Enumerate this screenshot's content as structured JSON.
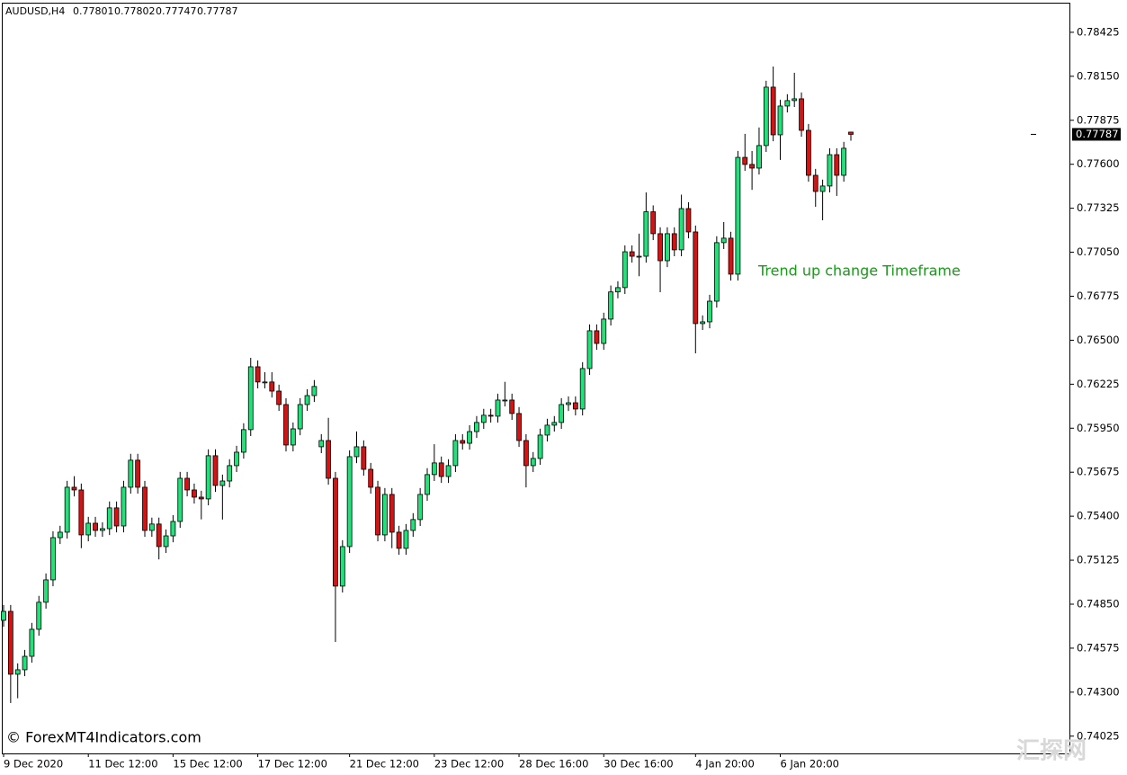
{
  "chart_data": {
    "type": "candlestick",
    "symbol": "AUDUSD,H4",
    "annotation": "Trend up change Timeframe",
    "watermark": "© ForexMT4Indicators.com",
    "watermark2": "汇探网",
    "up_color": "#22e07a",
    "down_color": "#d41414",
    "ylim": [
      0.73917,
      0.7861
    ],
    "yticks": [
      0.78425,
      {
        "value": 0.7815,
        "label": "0.78150"
      },
      0.77875,
      {
        "value": 0.776,
        "label": "0.77600"
      },
      0.77325,
      {
        "value": 0.7705,
        "label": "0.77050"
      },
      0.76775,
      {
        "value": 0.765,
        "label": "0.76500"
      },
      0.76225,
      {
        "value": 0.7595,
        "label": "0.75950"
      },
      0.75675,
      {
        "value": 0.754,
        "label": "0.75400"
      },
      0.75125,
      {
        "value": 0.7485,
        "label": "0.74850"
      },
      0.74575,
      {
        "value": 0.743,
        "label": "0.74300"
      },
      0.74025
    ],
    "categories": [
      "9 Dec 2020",
      null,
      null,
      null,
      null,
      null,
      null,
      null,
      null,
      null,
      null,
      null,
      "11 Dec 12:00",
      null,
      null,
      null,
      null,
      null,
      null,
      null,
      null,
      null,
      null,
      null,
      "15 Dec 12:00",
      null,
      null,
      null,
      null,
      null,
      null,
      null,
      null,
      null,
      null,
      null,
      "17 Dec 12:00",
      null,
      null,
      null,
      null,
      null,
      null,
      null,
      null,
      null,
      null,
      null,
      null,
      "21 Dec 12:00",
      null,
      null,
      null,
      null,
      null,
      null,
      null,
      null,
      null,
      null,
      null,
      "23 Dec 12:00",
      null,
      null,
      null,
      null,
      null,
      null,
      null,
      null,
      null,
      null,
      null,
      "28 Dec 16:00",
      null,
      null,
      null,
      null,
      null,
      null,
      null,
      null,
      null,
      null,
      null,
      "30 Dec 16:00",
      null,
      null,
      null,
      null,
      null,
      null,
      null,
      null,
      null,
      null,
      null,
      null,
      "4 Jan 20:00",
      null,
      null,
      null,
      null,
      null,
      null,
      null,
      null,
      null,
      null,
      null,
      "6 Jan 20:00",
      null,
      null,
      null,
      null,
      null,
      null,
      null,
      null,
      null,
      null
    ],
    "open": [
      0.74749,
      0.74805,
      0.74412,
      0.7444,
      0.74524,
      0.74693,
      0.74862,
      0.75002,
      0.75266,
      0.753,
      0.75581,
      0.75564,
      0.75283,
      0.75356,
      0.75311,
      0.75322,
      0.75452,
      0.75339,
      0.75581,
      0.7575,
      0.75581,
      0.75311,
      0.75351,
      0.7521,
      0.75277,
      0.75367,
      0.75637,
      0.75564,
      0.75519,
      0.75508,
      0.75778,
      0.75592,
      0.7562,
      0.75716,
      0.758,
      0.75941,
      0.76334,
      0.76239,
      0.76239,
      0.76182,
      0.76098,
      0.75845,
      0.75946,
      0.76098,
      0.76154,
      0.75834,
      0.75873,
      0.75637,
      0.74963,
      0.7521,
      0.75772,
      0.75834,
      0.75693,
      0.75581,
      0.75283,
      0.75536,
      0.753,
      0.75199,
      0.75311,
      0.75379,
      0.75536,
      0.7566,
      0.75733,
      0.75648,
      0.75716,
      0.75873,
      0.75856,
      0.75929,
      0.75986,
      0.76031,
      0.76025,
      0.76126,
      0.76126,
      0.76042,
      0.75873,
      0.75716,
      0.75761,
      0.75907,
      0.75969,
      0.75986,
      0.76098,
      0.76109,
      0.7607,
      0.76323,
      0.76559,
      0.7648,
      0.76632,
      0.76802,
      0.76829,
      0.77053,
      0.77025,
      0.77025,
      0.77303,
      0.77166,
      0.76997,
      0.77166,
      0.77065,
      0.77323,
      0.77177,
      0.76604,
      0.76615,
      0.76744,
      0.7711,
      0.77138,
      0.76913,
      0.77643,
      0.77599,
      0.77576,
      0.77717,
      0.78082,
      0.77784,
      0.77964,
      0.77998,
      0.78009,
      0.77812,
      0.77531,
      0.7743,
      0.77464,
      0.7766,
      0.77531,
      0.77801
    ],
    "high": [
      0.74845,
      0.74845,
      0.7448,
      0.74564,
      0.74733,
      0.74902,
      0.75042,
      0.75306,
      0.7534,
      0.75621,
      0.7565,
      0.75604,
      0.75396,
      0.75396,
      0.75362,
      0.75492,
      0.75492,
      0.75621,
      0.7579,
      0.7579,
      0.75621,
      0.75391,
      0.75391,
      0.75317,
      0.75407,
      0.75677,
      0.75677,
      0.75604,
      0.75559,
      0.75818,
      0.75818,
      0.7566,
      0.75756,
      0.7584,
      0.75981,
      0.7639,
      0.76374,
      0.763,
      0.763,
      0.76222,
      0.76138,
      0.75986,
      0.76138,
      0.76194,
      0.76251,
      0.75913,
      0.76015,
      0.75677,
      0.7525,
      0.75812,
      0.7593,
      0.75874,
      0.75733,
      0.75621,
      0.75576,
      0.75576,
      0.7534,
      0.75351,
      0.75419,
      0.75576,
      0.757,
      0.7585,
      0.75773,
      0.75756,
      0.75913,
      0.75913,
      0.75969,
      0.76026,
      0.76071,
      0.76071,
      0.76166,
      0.7624,
      0.76166,
      0.76082,
      0.75913,
      0.75801,
      0.75947,
      0.76009,
      0.76026,
      0.76138,
      0.76149,
      0.76149,
      0.76363,
      0.76599,
      0.76599,
      0.76672,
      0.76842,
      0.76869,
      0.77093,
      0.77093,
      0.77166,
      0.77424,
      0.77343,
      0.77206,
      0.77206,
      0.77206,
      0.7741,
      0.77363,
      0.77217,
      0.76655,
      0.76784,
      0.7715,
      0.77239,
      0.77178,
      0.77683,
      0.7779,
      0.77683,
      0.7783,
      0.78122,
      0.78211,
      0.78004,
      0.78038,
      0.78172,
      0.78049,
      0.77852,
      0.77571,
      0.77504,
      0.777,
      0.777,
      0.7774,
      0.77802
    ],
    "low": [
      0.74709,
      0.74232,
      0.74262,
      0.744,
      0.74484,
      0.74653,
      0.74822,
      0.74962,
      0.75226,
      0.7526,
      0.75524,
      0.752,
      0.75243,
      0.75271,
      0.75271,
      0.75282,
      0.75299,
      0.75299,
      0.75541,
      0.75541,
      0.75271,
      0.75271,
      0.7513,
      0.7517,
      0.75237,
      0.75327,
      0.75524,
      0.75479,
      0.7538,
      0.75468,
      0.75552,
      0.75379,
      0.7558,
      0.75676,
      0.7576,
      0.75901,
      0.76199,
      0.76199,
      0.76142,
      0.76058,
      0.75805,
      0.75805,
      0.75906,
      0.76058,
      0.76114,
      0.75794,
      0.75597,
      0.74614,
      0.74923,
      0.7517,
      0.75732,
      0.75653,
      0.75541,
      0.75243,
      0.75243,
      0.752,
      0.75159,
      0.75159,
      0.75271,
      0.75339,
      0.75496,
      0.7562,
      0.75608,
      0.75608,
      0.75676,
      0.75816,
      0.75816,
      0.75889,
      0.75946,
      0.75985,
      0.75985,
      0.76086,
      0.76002,
      0.75833,
      0.7558,
      0.75676,
      0.75721,
      0.75867,
      0.75929,
      0.75946,
      0.76058,
      0.7603,
      0.7603,
      0.76283,
      0.7644,
      0.7644,
      0.76592,
      0.76762,
      0.76789,
      0.76985,
      0.769,
      0.76985,
      0.77126,
      0.768,
      0.76957,
      0.77025,
      0.77025,
      0.77137,
      0.76418,
      0.76564,
      0.76575,
      0.76704,
      0.7707,
      0.76873,
      0.76873,
      0.77559,
      0.7744,
      0.77536,
      0.77677,
      0.77744,
      0.77627,
      0.77924,
      0.77958,
      0.77772,
      0.77491,
      0.77334,
      0.7725,
      0.77424,
      0.77402,
      0.77491,
      0.77747
    ],
    "close": [
      0.74805,
      0.74412,
      0.7444,
      0.74524,
      0.74693,
      0.74862,
      0.75002,
      0.75266,
      0.753,
      0.75581,
      0.75564,
      0.75283,
      0.75356,
      0.75311,
      0.75322,
      0.75452,
      0.75339,
      0.75581,
      0.7575,
      0.75581,
      0.75311,
      0.75351,
      0.7521,
      0.75277,
      0.75367,
      0.75637,
      0.75564,
      0.75519,
      0.75508,
      0.75778,
      0.75592,
      0.7562,
      0.75716,
      0.758,
      0.75941,
      0.76334,
      0.76239,
      0.76239,
      0.76182,
      0.76098,
      0.75845,
      0.75946,
      0.76098,
      0.76154,
      0.76211,
      0.75873,
      0.75637,
      0.74963,
      0.7521,
      0.75772,
      0.75834,
      0.75693,
      0.75581,
      0.75283,
      0.75536,
      0.753,
      0.75199,
      0.75311,
      0.75379,
      0.75536,
      0.7566,
      0.75733,
      0.75648,
      0.75716,
      0.75873,
      0.75856,
      0.75929,
      0.75986,
      0.76031,
      0.76025,
      0.76126,
      0.76126,
      0.76042,
      0.75873,
      0.75716,
      0.75761,
      0.75907,
      0.75969,
      0.75986,
      0.76098,
      0.76109,
      0.7607,
      0.76323,
      0.76559,
      0.7648,
      0.76632,
      0.76802,
      0.76829,
      0.77053,
      0.77025,
      0.77025,
      0.77303,
      0.77166,
      0.76997,
      0.77166,
      0.77065,
      0.77323,
      0.77177,
      0.76604,
      0.76615,
      0.76744,
      0.7711,
      0.77138,
      0.76913,
      0.77643,
      0.77599,
      0.77576,
      0.77717,
      0.78082,
      0.77784,
      0.77964,
      0.77998,
      0.78009,
      0.77812,
      0.77531,
      0.7743,
      0.77464,
      0.7766,
      0.77531,
      0.777,
      0.77787
    ]
  }
}
